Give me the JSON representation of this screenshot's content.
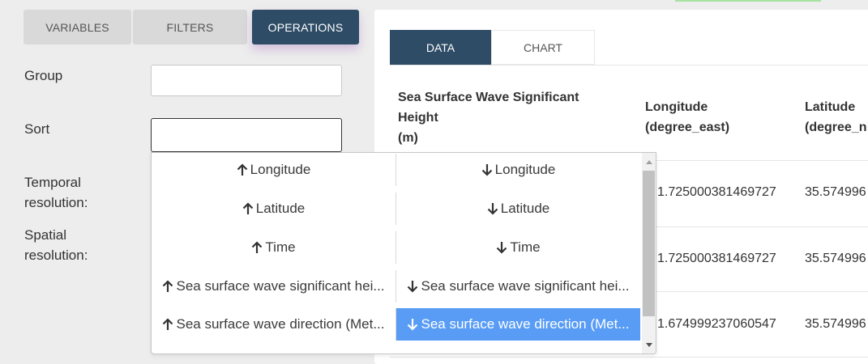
{
  "tabs": {
    "variables": "VARIABLES",
    "filters": "FILTERS",
    "operations": "OPERATIONS"
  },
  "form": {
    "group_label": "Group",
    "sort_label": "Sort",
    "temporal_label_1": "Temporal",
    "temporal_label_2": "resolution:",
    "spatial_label_1": "Spatial",
    "spatial_label_2": "resolution:",
    "group_value": "",
    "sort_value": ""
  },
  "view_tabs": {
    "data": "DATA",
    "chart": "CHART"
  },
  "table": {
    "headers": {
      "wave_1": "Sea Surface Wave Significant",
      "wave_2": "Height",
      "wave_3": "(m)",
      "lon_1": "Longitude",
      "lon_2": "(degree_east)",
      "lat_1": "Latitude",
      "lat_2": "(degree_n"
    },
    "rows": [
      {
        "longitude": "1.725000381469727",
        "latitude": "35.574996"
      },
      {
        "longitude": "1.725000381469727",
        "latitude": "35.574996"
      },
      {
        "longitude": "1.674999237060547",
        "latitude": "35.574996"
      }
    ]
  },
  "sort_options": [
    {
      "asc": "Longitude",
      "desc": "Longitude"
    },
    {
      "asc": "Latitude",
      "desc": "Latitude"
    },
    {
      "asc": "Time",
      "desc": "Time"
    },
    {
      "asc": "Sea surface wave significant hei...",
      "desc": "Sea surface wave significant hei..."
    },
    {
      "asc": "Sea surface wave direction (Met...",
      "desc": "Sea surface wave direction (Met..."
    }
  ],
  "selected_option": "desc-4",
  "colors": {
    "primary": "#2e4c66",
    "selected": "#589cf5",
    "background": "#ededed"
  },
  "icons": {
    "asc": "arrow-up-icon",
    "desc": "arrow-down-icon"
  }
}
